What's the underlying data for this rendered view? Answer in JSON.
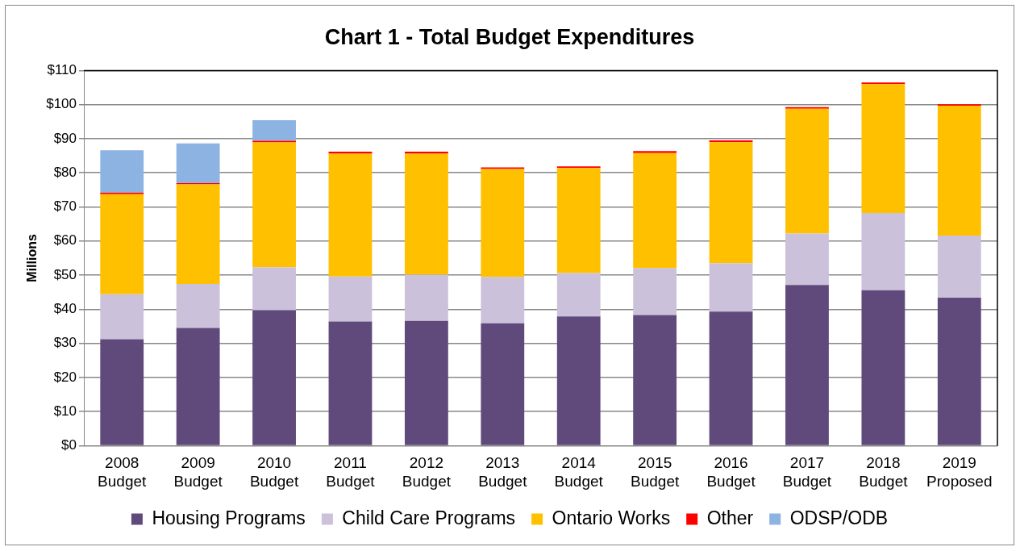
{
  "chart_data": {
    "type": "bar",
    "title": "Chart 1 - Total Budget Expenditures",
    "ylabel": "Millions",
    "categories": [
      "2008 Budget",
      "2009 Budget",
      "2010 Budget",
      "2011 Budget",
      "2012 Budget",
      "2013 Budget",
      "2014 Budget",
      "2015 Budget",
      "2016 Budget",
      "2017 Budget",
      "2018 Budget",
      "2019 Proposed"
    ],
    "stacked": true,
    "series": [
      {
        "name": "Housing Programs",
        "color": "#604a7b",
        "values": [
          31.2,
          34.5,
          39.7,
          36.4,
          36.6,
          35.9,
          37.9,
          38.3,
          39.3,
          47.1,
          45.6,
          43.4
        ]
      },
      {
        "name": "Child Care Programs",
        "color": "#ccc1da",
        "values": [
          13.2,
          12.9,
          12.6,
          13.2,
          13.5,
          13.6,
          12.7,
          13.8,
          14.2,
          15.1,
          22.6,
          18.2
        ]
      },
      {
        "name": "Ontario Works",
        "color": "#ffc000",
        "values": [
          29.3,
          29.2,
          36.6,
          36.0,
          35.5,
          31.6,
          30.8,
          33.7,
          35.5,
          36.6,
          37.8,
          38.1
        ]
      },
      {
        "name": "Other",
        "color": "#ff0000",
        "values": [
          0.5,
          0.4,
          0.5,
          0.6,
          0.6,
          0.5,
          0.5,
          0.6,
          0.5,
          0.5,
          0.5,
          0.4
        ]
      },
      {
        "name": "ODSP/ODB",
        "color": "#8db3e2",
        "values": [
          12.4,
          11.6,
          6.0,
          null,
          null,
          null,
          null,
          null,
          null,
          null,
          null,
          null
        ]
      }
    ],
    "ylim": [
      0,
      110
    ],
    "yticks": [
      {
        "value": 0,
        "label": "$0"
      },
      {
        "value": 10,
        "label": "$10"
      },
      {
        "value": 20,
        "label": "$20"
      },
      {
        "value": 30,
        "label": "$30"
      },
      {
        "value": 40,
        "label": "$40"
      },
      {
        "value": 50,
        "label": "$50"
      },
      {
        "value": 60,
        "label": "$60"
      },
      {
        "value": 70,
        "label": "$70"
      },
      {
        "value": 80,
        "label": "$80"
      },
      {
        "value": 90,
        "label": "$90"
      },
      {
        "value": 100,
        "label": "$100"
      },
      {
        "value": 110,
        "label": "$110"
      }
    ],
    "grid": "y",
    "legend": "bottom"
  }
}
